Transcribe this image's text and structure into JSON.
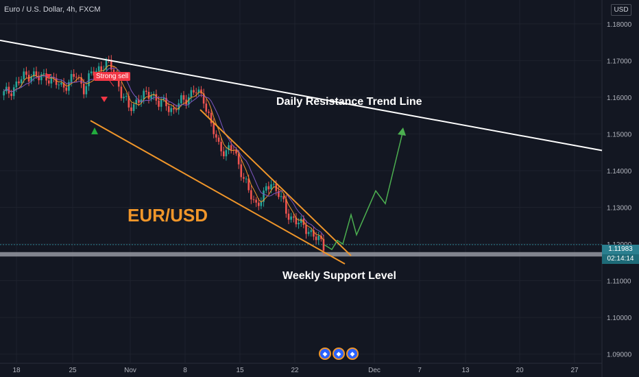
{
  "header": {
    "symbol_title": "Euro / U.S. Dollar, 4h, FXCM",
    "currency": "USD"
  },
  "price_scale": {
    "current_price": "1.11983",
    "countdown": "02:14:14"
  },
  "annotations": {
    "resistance_label": "Daily Resistance Trend Line",
    "support_label": "Weekly Support Level",
    "pair_label": "EUR/USD",
    "signal_label": "Strong sell"
  },
  "colors": {
    "background": "#131722",
    "up_candle": "#26a69a",
    "down_candle": "#ef5350",
    "trend_line": "#ffffff",
    "wedge": "#f0962a",
    "projection": "#4caf50",
    "support_zone": "#9598a1"
  },
  "chart_data": {
    "type": "line",
    "title": "",
    "xlabel": "",
    "ylabel": "",
    "x_tick_labels": [
      "18",
      "25",
      "Nov",
      "8",
      "15",
      "22",
      "Dec",
      "7",
      "13",
      "20",
      "27"
    ],
    "y_tick_labels": [
      "1.18000",
      "1.17000",
      "1.16000",
      "1.15000",
      "1.14000",
      "1.13000",
      "1.12000",
      "1.11000",
      "1.10000",
      "1.09000"
    ],
    "y_ticks": [
      1.18,
      1.17,
      1.16,
      1.15,
      1.14,
      1.13,
      1.12,
      1.11,
      1.1,
      1.09
    ],
    "ylim": [
      1.0875,
      1.1865
    ],
    "grid": true,
    "price_path": [
      1.1605,
      1.1615,
      1.1635,
      1.1655,
      1.1665,
      1.165,
      1.166,
      1.164,
      1.163,
      1.164,
      1.166,
      1.1625,
      1.166,
      1.168,
      1.169,
      1.1675,
      1.161,
      1.157,
      1.159,
      1.16,
      1.1615,
      1.158,
      1.1585,
      1.156,
      1.159,
      1.1605,
      1.1615,
      1.16,
      1.152,
      1.147,
      1.145,
      1.146,
      1.14,
      1.134,
      1.131,
      1.133,
      1.137,
      1.134,
      1.1285,
      1.127,
      1.125,
      1.124,
      1.1215,
      1.1195
    ],
    "moving_average_note": "",
    "projection_path": [
      1.1198,
      1.1185,
      1.121,
      1.12,
      1.128,
      1.1225,
      1.1345,
      1.131,
      1.151
    ],
    "resistance_line": {
      "start": 1.1755,
      "end": 1.1455
    },
    "support_zone": {
      "top": 1.1178,
      "bottom": 1.1166
    },
    "current_price": 1.11983,
    "signals": [
      {
        "type": "sell",
        "label": "",
        "price": 1.172
      },
      {
        "type": "sell",
        "label": "",
        "price": 1.164
      },
      {
        "type": "buy",
        "label": "",
        "price": 1.159
      },
      {
        "type": "signal",
        "label": "Strong sell",
        "price": 1.17
      }
    ]
  }
}
